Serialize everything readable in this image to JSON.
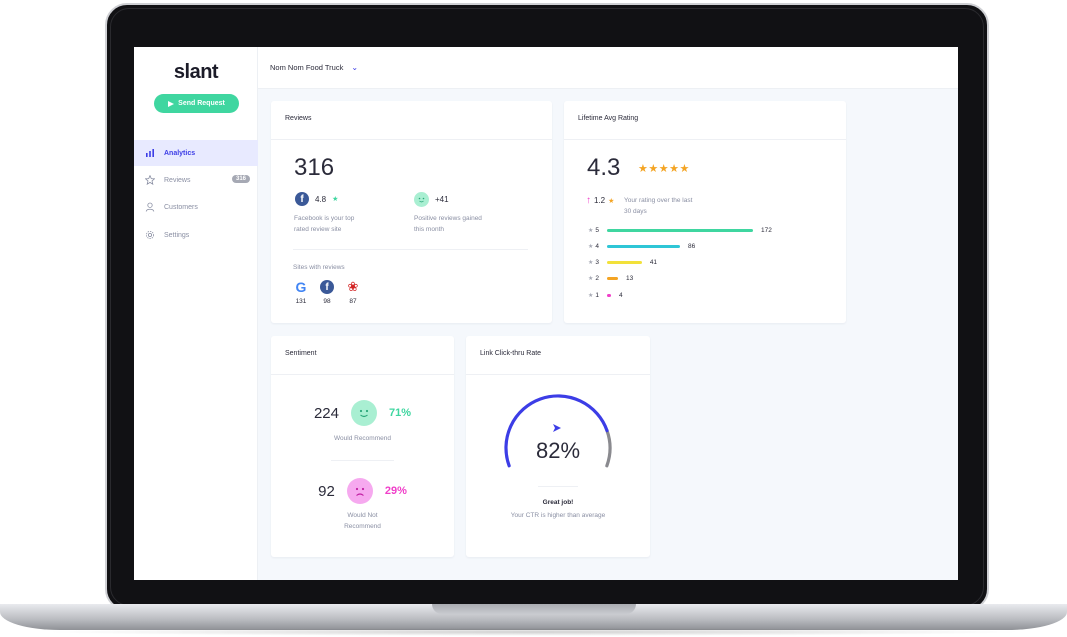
{
  "app": {
    "logo": "slant",
    "send_button": "Send Request",
    "business_selector": "Nom Nom Food Truck"
  },
  "sidebar": {
    "items": [
      {
        "label": "Analytics",
        "icon": "bar-chart-icon",
        "active": true
      },
      {
        "label": "Reviews",
        "icon": "star-icon",
        "badge": "316"
      },
      {
        "label": "Customers",
        "icon": "user-icon"
      },
      {
        "label": "Settings",
        "icon": "gear-icon"
      }
    ]
  },
  "reviews_card": {
    "title": "Reviews",
    "total": "316",
    "top_site_rating": "4.8",
    "top_site_caption_1": "Facebook is your top",
    "top_site_caption_2": "rated review site",
    "positive_delta": "+41",
    "positive_caption_1": "Positive reviews gained",
    "positive_caption_2": "this month",
    "sites_label": "Sites with reviews",
    "sites": [
      {
        "name": "Google",
        "icon": "google-icon",
        "count": "131"
      },
      {
        "name": "Facebook",
        "icon": "facebook-icon",
        "count": "98"
      },
      {
        "name": "Yelp",
        "icon": "yelp-icon",
        "count": "87"
      }
    ]
  },
  "rating_card": {
    "title": "Lifetime Avg Rating",
    "average": "4.3",
    "stars": 5,
    "change": "1.2",
    "change_caption_1": "Your rating over the last",
    "change_caption_2": "30 days",
    "distribution": [
      {
        "stars": "5",
        "count": "172",
        "value": 172,
        "color": "#3fd6a0"
      },
      {
        "stars": "4",
        "count": "86",
        "value": 86,
        "color": "#2fc6d6"
      },
      {
        "stars": "3",
        "count": "41",
        "value": 41,
        "color": "#f2e13a"
      },
      {
        "stars": "2",
        "count": "13",
        "value": 13,
        "color": "#f4a423"
      },
      {
        "stars": "1",
        "count": "4",
        "value": 4,
        "color": "#f03fc9"
      }
    ]
  },
  "sentiment_card": {
    "title": "Sentiment",
    "positive_count": "224",
    "positive_pct": "71%",
    "positive_label": "Would Recommend",
    "negative_count": "92",
    "negative_pct": "29%",
    "negative_label_1": "Would Not",
    "negative_label_2": "Recommend"
  },
  "ctr_card": {
    "title": "Link Click-thru Rate",
    "value": "82%",
    "fraction": 0.82,
    "message_title": "Great job!",
    "message_body": "Your CTR is higher than average"
  },
  "colors": {
    "accent": "#3c3de6",
    "green": "#3fd6a0",
    "pink": "#f03fc9",
    "star": "#f4a423"
  }
}
